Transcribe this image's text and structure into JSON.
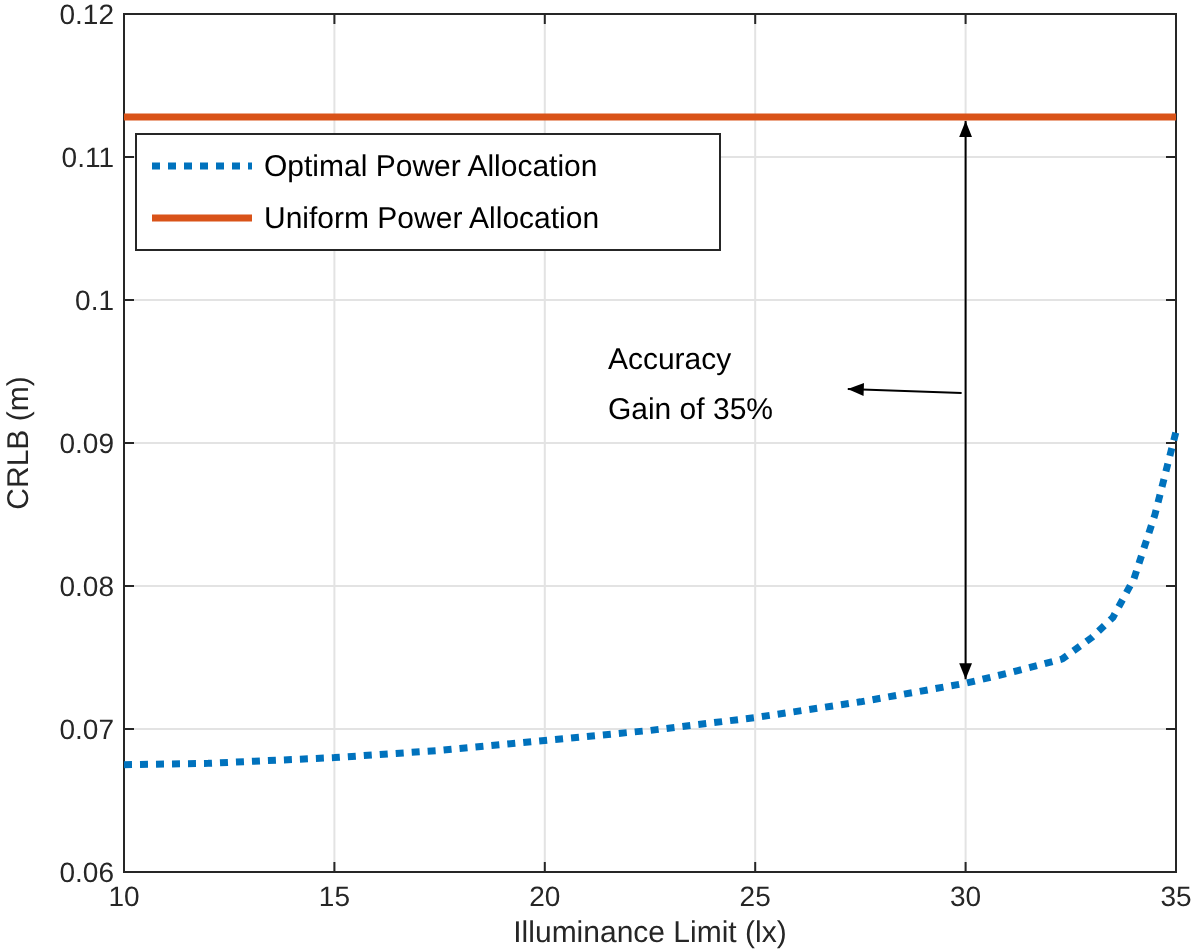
{
  "chart_data": {
    "type": "line",
    "xlabel": "Illuminance Limit (lx)",
    "ylabel": "CRLB (m)",
    "xlim": [
      10,
      35
    ],
    "xticks": [
      10,
      15,
      20,
      25,
      30,
      35
    ],
    "ylim": [
      0.06,
      0.12
    ],
    "yticks": [
      0.06,
      0.07,
      0.08,
      0.09,
      0.1,
      0.11,
      0.12
    ],
    "grid": true,
    "legend": "top left",
    "annotations": [
      "Accuracy\nGain of 35%"
    ],
    "series": [
      {
        "name": "Optimal Power Allocation",
        "color": "#0072bd",
        "line_style": "dotted",
        "x": [
          10,
          12,
          15,
          17.5,
          20,
          22.5,
          25,
          27.5,
          30,
          31,
          32.3,
          33,
          33.5,
          34,
          34.5,
          35
        ],
        "values": [
          0.0675,
          0.0676,
          0.068,
          0.0685,
          0.0692,
          0.0699,
          0.0708,
          0.0719,
          0.0732,
          0.0739,
          0.0749,
          0.0764,
          0.0778,
          0.0805,
          0.085,
          0.0908
        ]
      },
      {
        "name": "Uniform Power Allocation",
        "color": "#d95319",
        "line_style": "solid",
        "x": [
          10,
          35
        ],
        "values": [
          0.1128,
          0.1128
        ]
      }
    ]
  }
}
